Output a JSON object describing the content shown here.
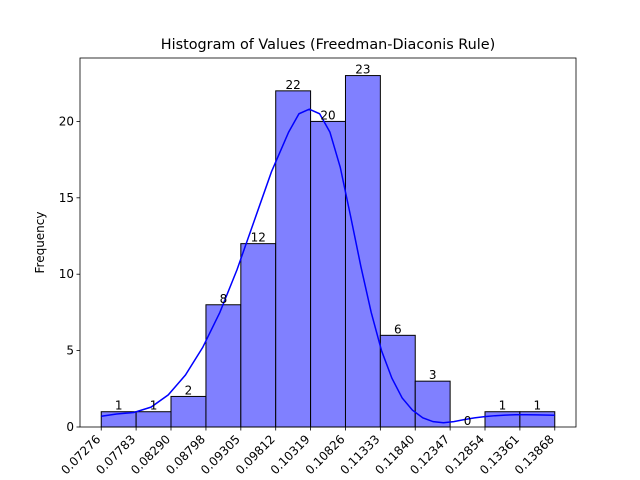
{
  "chart_data": {
    "type": "bar",
    "title": "Histogram of Values (Freedman-Diaconis Rule)",
    "xlabel": "",
    "ylabel": "Frequency",
    "bin_edges": [
      0.07276,
      0.07783,
      0.0829,
      0.08798,
      0.09305,
      0.09812,
      0.10319,
      0.10826,
      0.11333,
      0.1184,
      0.12347,
      0.12854,
      0.13361,
      0.13868
    ],
    "x_tick_labels": [
      "0.07276",
      "0.07783",
      "0.08290",
      "0.08798",
      "0.09305",
      "0.09812",
      "0.10319",
      "0.10826",
      "0.11333",
      "0.11840",
      "0.12347",
      "0.12854",
      "0.13361",
      "0.13868"
    ],
    "values": [
      1,
      1,
      2,
      8,
      12,
      22,
      20,
      23,
      6,
      3,
      0,
      1,
      1
    ],
    "count_labels": [
      "1",
      "1",
      "2",
      "8",
      "12",
      "22",
      "20",
      "23",
      "6",
      "3",
      "0",
      "1",
      "1"
    ],
    "y_ticks": [
      0,
      5,
      10,
      15,
      20
    ],
    "y_tick_labels": [
      "0",
      "5",
      "10",
      "15",
      "20"
    ],
    "ylim": [
      0,
      24.15
    ],
    "xlim": [
      0.069674,
      0.141766
    ],
    "grid": false,
    "bar_color": "#8080ff",
    "bar_edge_color": "#000000",
    "kde_color": "#0000ff",
    "kde_curve": [
      [
        0.07276,
        0.7
      ],
      [
        0.075,
        0.85
      ],
      [
        0.0775,
        0.95
      ],
      [
        0.08,
        1.3
      ],
      [
        0.0825,
        2.1
      ],
      [
        0.085,
        3.4
      ],
      [
        0.0875,
        5.2
      ],
      [
        0.09,
        7.5
      ],
      [
        0.0925,
        10.3
      ],
      [
        0.095,
        13.5
      ],
      [
        0.0975,
        16.7
      ],
      [
        0.1,
        19.3
      ],
      [
        0.1015,
        20.5
      ],
      [
        0.103,
        20.8
      ],
      [
        0.1045,
        20.5
      ],
      [
        0.106,
        19.3
      ],
      [
        0.1075,
        17.0
      ],
      [
        0.109,
        13.8
      ],
      [
        0.1105,
        10.5
      ],
      [
        0.112,
        7.5
      ],
      [
        0.1135,
        5.0
      ],
      [
        0.115,
        3.2
      ],
      [
        0.1165,
        1.9
      ],
      [
        0.118,
        1.1
      ],
      [
        0.1195,
        0.6
      ],
      [
        0.121,
        0.35
      ],
      [
        0.1225,
        0.28
      ],
      [
        0.124,
        0.35
      ],
      [
        0.1255,
        0.48
      ],
      [
        0.127,
        0.6
      ],
      [
        0.1285,
        0.68
      ],
      [
        0.13,
        0.74
      ],
      [
        0.1315,
        0.78
      ],
      [
        0.133,
        0.8
      ],
      [
        0.1345,
        0.8
      ],
      [
        0.136,
        0.79
      ],
      [
        0.13868,
        0.77
      ]
    ]
  }
}
